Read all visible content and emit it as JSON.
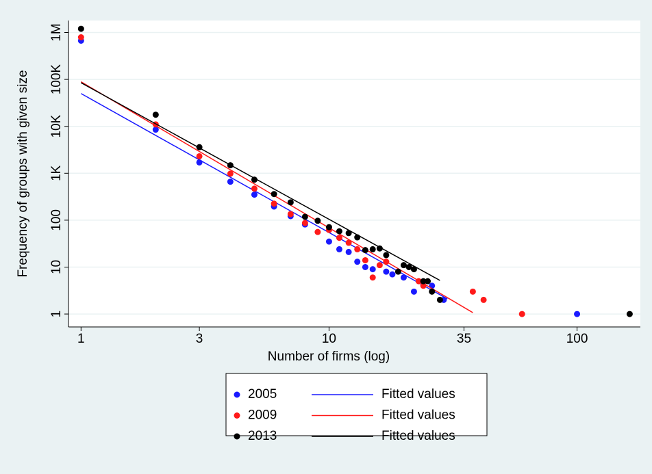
{
  "chart_data": {
    "type": "scatter",
    "xlabel": "Number of firms (log)",
    "ylabel": "Frequency of groups with given size",
    "xscale": "log",
    "yscale": "log",
    "xlim": [
      0.89,
      180
    ],
    "ylim": [
      0.53,
      1800000
    ],
    "xticks": [
      1,
      3,
      10,
      35,
      100
    ],
    "yticks": [
      1,
      10,
      100,
      {
        "value": 1000,
        "label": "1K"
      },
      {
        "value": 10000,
        "label": "10K"
      },
      {
        "value": 100000,
        "label": "100K"
      },
      {
        "value": 1000000,
        "label": "1M"
      }
    ],
    "grid": true,
    "legend": "below",
    "series": [
      {
        "name": "2005",
        "color": "#1a1aff",
        "style": "markers",
        "x": [
          1,
          2,
          3,
          4,
          5,
          6,
          7,
          8,
          10,
          11,
          12,
          13,
          14,
          15,
          17,
          18,
          20,
          22,
          26,
          29,
          100
        ],
        "values": [
          670000,
          8500,
          1700,
          660,
          350,
          195,
          122,
          81,
          35,
          24,
          21,
          13,
          10,
          9,
          8,
          7,
          6,
          3,
          4,
          2,
          1
        ]
      },
      {
        "name": "Fitted values",
        "color": "#1a1aff",
        "style": "line",
        "x": [
          1,
          30
        ],
        "values": [
          50000,
          2.1
        ]
      },
      {
        "name": "2009",
        "color": "#ff1a1a",
        "style": "markers",
        "x": [
          1,
          2,
          3,
          4,
          5,
          6,
          7,
          8,
          9,
          10,
          11,
          12,
          13,
          14,
          15,
          16,
          17,
          23,
          24,
          38,
          42,
          60
        ],
        "values": [
          790000,
          11000,
          2300,
          980,
          470,
          225,
          135,
          87,
          56,
          62,
          42,
          33,
          24,
          14,
          6,
          11,
          13,
          5,
          4,
          3,
          2,
          1
        ]
      },
      {
        "name": "Fitted values",
        "color": "#ff1a1a",
        "style": "line",
        "x": [
          1,
          38
        ],
        "values": [
          89000,
          1.07
        ]
      },
      {
        "name": "2013",
        "color": "#000000",
        "style": "markers",
        "x": [
          1,
          2,
          3,
          4,
          5,
          6,
          7,
          8,
          9,
          10,
          11,
          12,
          13,
          14,
          15,
          16,
          17,
          19,
          20,
          21,
          22,
          24,
          25,
          26,
          28,
          163
        ],
        "values": [
          1200000,
          17700,
          3600,
          1480,
          730,
          360,
          240,
          118,
          97,
          71,
          58,
          53,
          43,
          23,
          24,
          25,
          18,
          8,
          11,
          10,
          9,
          5,
          5,
          3,
          2,
          1
        ]
      },
      {
        "name": "Fitted values",
        "color": "#000000",
        "style": "line",
        "x": [
          1,
          28
        ],
        "values": [
          85000,
          5.2
        ]
      }
    ]
  }
}
